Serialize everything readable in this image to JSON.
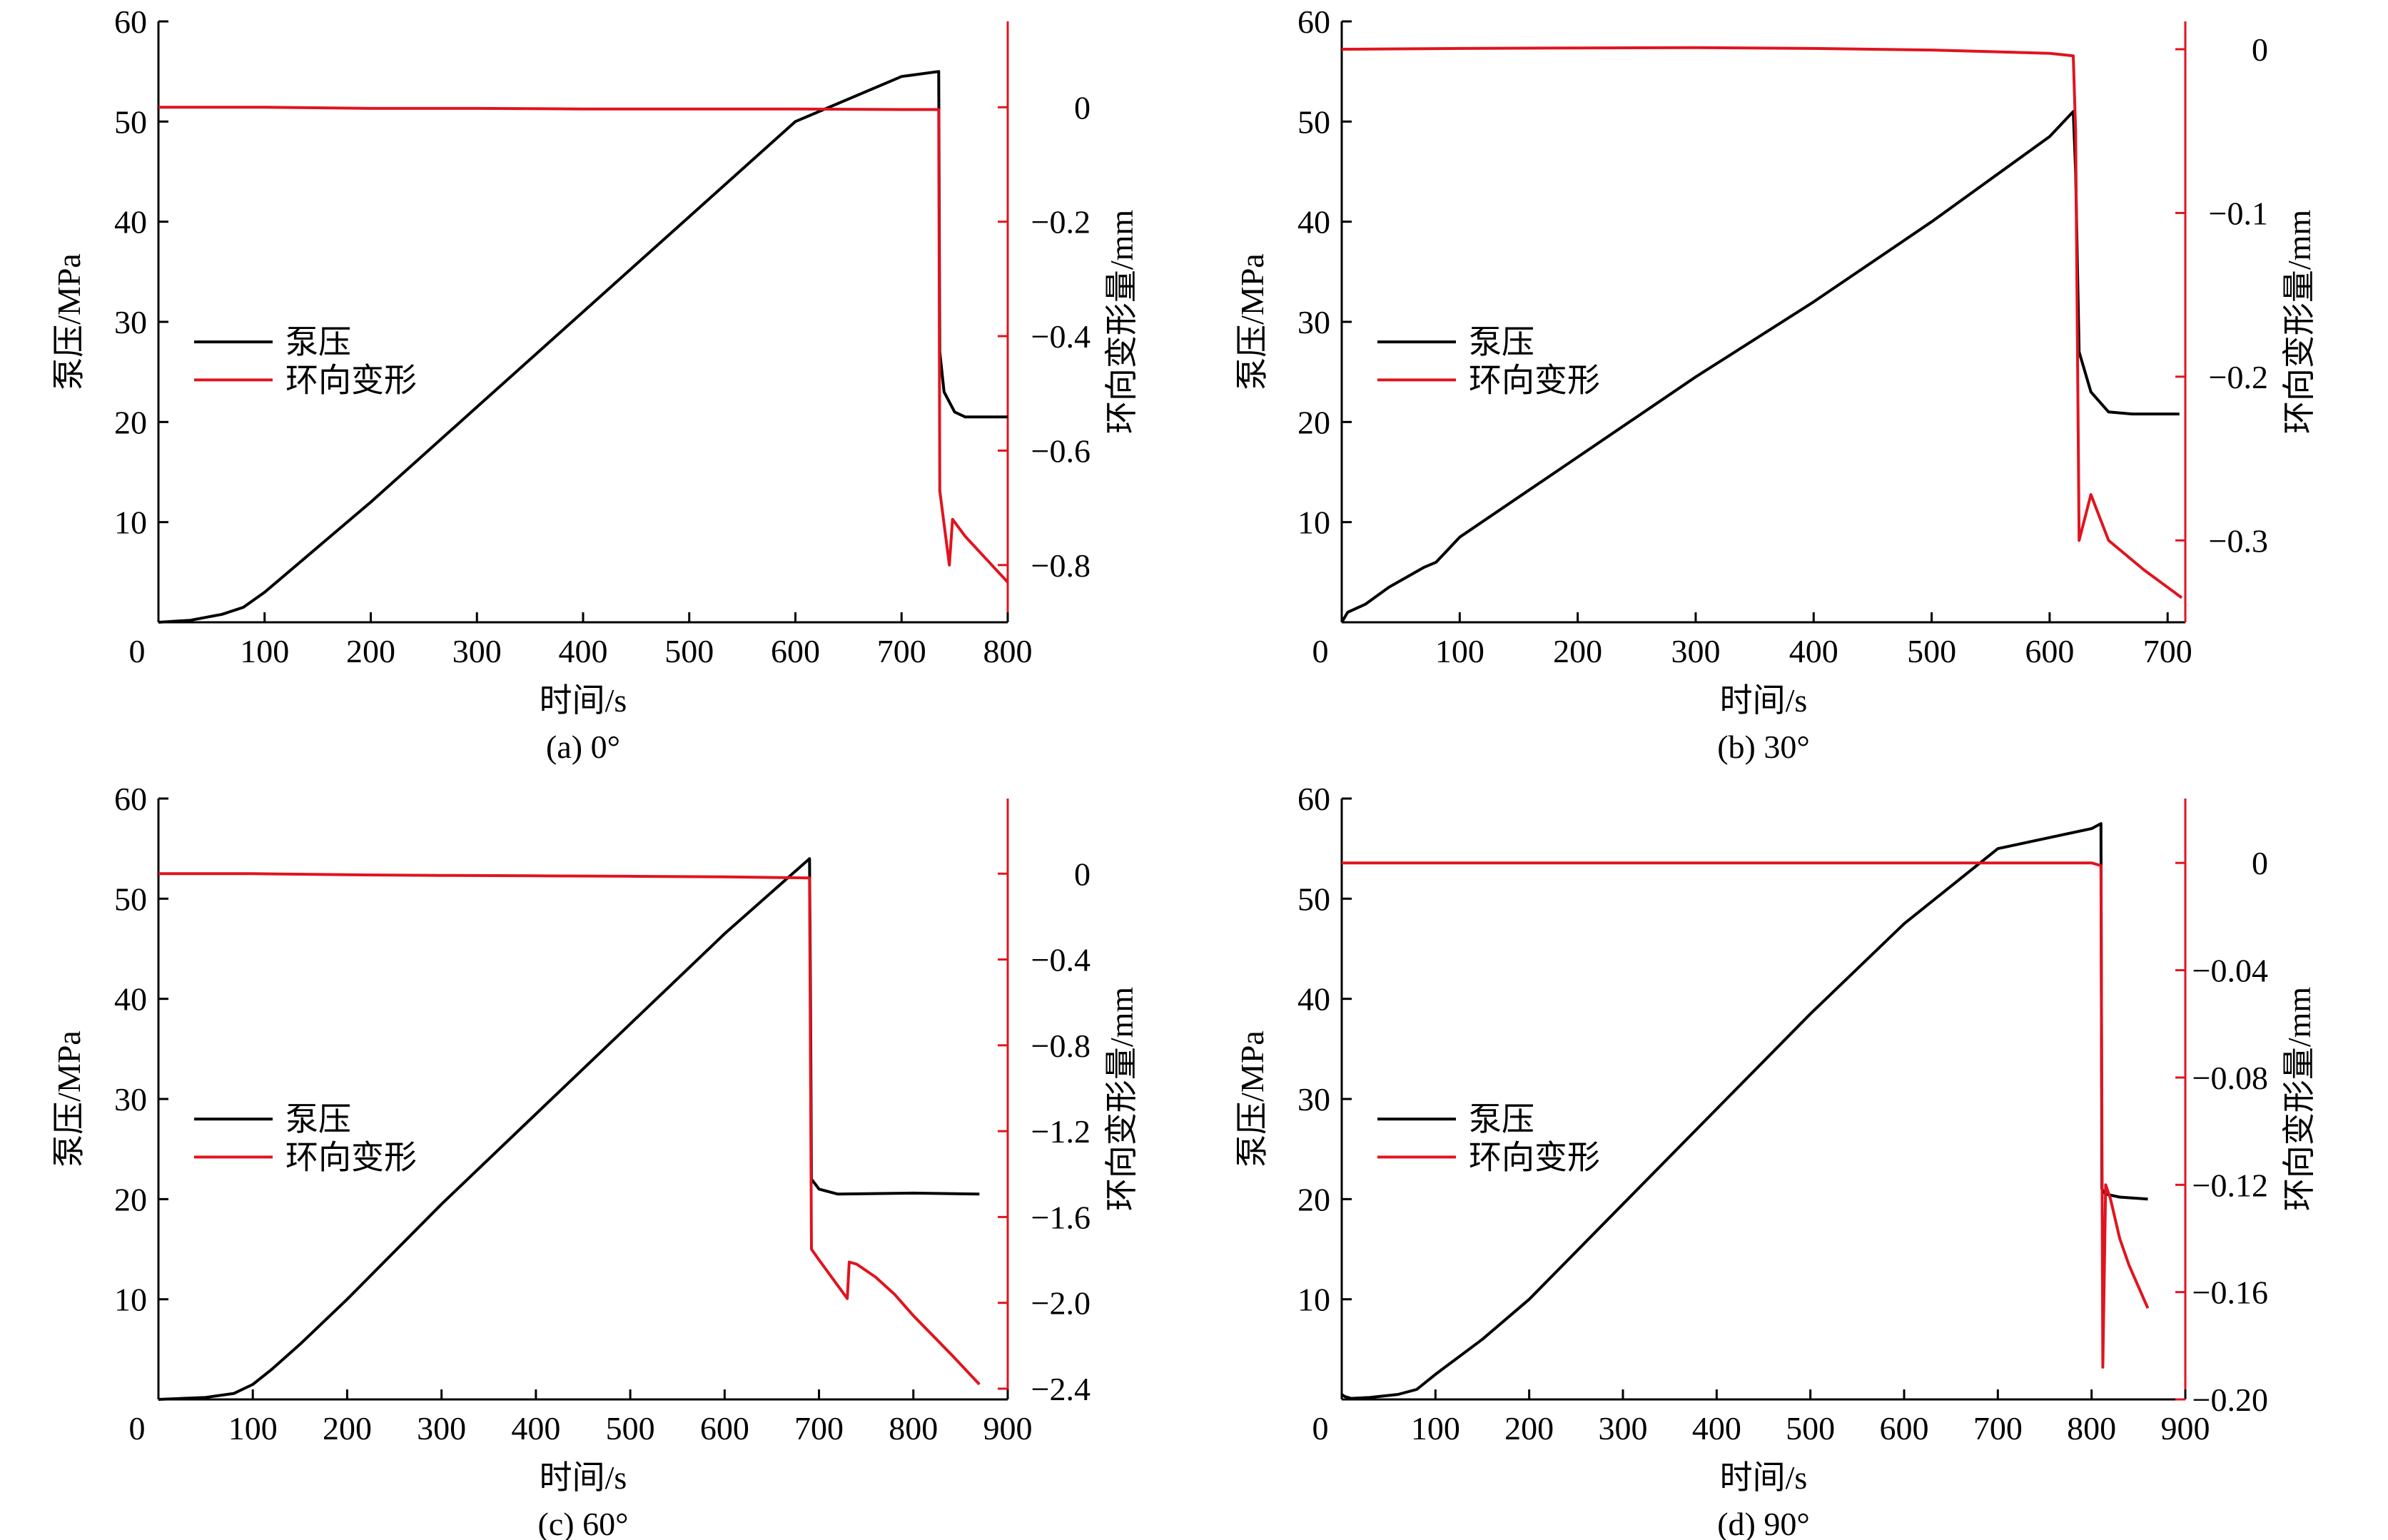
{
  "chart_data": [
    {
      "type": "line",
      "caption": "(a) 0°",
      "xlabel": "时间/s",
      "ylabel": "泵压/MPa",
      "y2label": "环向变形量/mm",
      "xlim": [
        0,
        800
      ],
      "xticks": [
        0,
        100,
        200,
        300,
        400,
        500,
        600,
        700,
        800
      ],
      "ylim": [
        0,
        60
      ],
      "yticks": [
        10,
        20,
        30,
        40,
        50,
        60
      ],
      "y2lim": [
        -0.9,
        0.15
      ],
      "y2ticks": [
        0,
        -0.2,
        -0.4,
        -0.6,
        -0.8
      ],
      "y2ticklabels": [
        "0",
        "−0.2",
        "−0.4",
        "−0.6",
        "−0.8"
      ],
      "legend_position": "left-middle",
      "colors": {
        "pump": "#000000",
        "hoop": "#e0141e"
      },
      "series": [
        {
          "name": "泵压",
          "axis": "left",
          "x": [
            0,
            30,
            60,
            80,
            100,
            150,
            200,
            300,
            400,
            500,
            600,
            700,
            735,
            736,
            740,
            750,
            760,
            800
          ],
          "y": [
            0,
            0.2,
            0.8,
            1.5,
            3,
            7.5,
            12,
            21.5,
            31,
            40.5,
            50,
            54.5,
            55,
            27,
            23,
            21,
            20.5,
            20.5
          ]
        },
        {
          "name": "环向变形",
          "axis": "right",
          "x": [
            0,
            100,
            200,
            300,
            400,
            500,
            600,
            700,
            735,
            736,
            745,
            748,
            760,
            780,
            800
          ],
          "y": [
            0,
            0,
            -0.002,
            -0.002,
            -0.003,
            -0.003,
            -0.003,
            -0.004,
            -0.004,
            -0.67,
            -0.8,
            -0.72,
            -0.75,
            -0.79,
            -0.83
          ]
        }
      ]
    },
    {
      "type": "line",
      "caption": "(b) 30°",
      "xlabel": "时间/s",
      "ylabel": "泵压/MPa",
      "y2label": "环向变形量/mm",
      "xlim": [
        0,
        715
      ],
      "xticks": [
        0,
        100,
        200,
        300,
        400,
        500,
        600,
        700
      ],
      "ylim": [
        0,
        60
      ],
      "yticks": [
        10,
        20,
        30,
        40,
        50,
        60
      ],
      "y2lim": [
        -0.35,
        0.017
      ],
      "y2ticks": [
        0,
        -0.1,
        -0.2,
        -0.3
      ],
      "y2ticklabels": [
        "0",
        "−0.1",
        "−0.2",
        "−0.3"
      ],
      "legend_position": "left-middle",
      "colors": {
        "pump": "#000000",
        "hoop": "#e0141e"
      },
      "series": [
        {
          "name": "泵压",
          "axis": "left",
          "x": [
            0,
            5,
            20,
            40,
            70,
            80,
            100,
            200,
            300,
            400,
            500,
            600,
            620,
            622,
            625,
            635,
            650,
            670,
            710
          ],
          "y": [
            0,
            1,
            1.8,
            3.5,
            5.5,
            6,
            8.5,
            16.5,
            24.5,
            32,
            40,
            48.5,
            51,
            45,
            27,
            23,
            21,
            20.8,
            20.8
          ]
        },
        {
          "name": "环向变形",
          "axis": "right",
          "x": [
            0,
            100,
            200,
            300,
            400,
            500,
            600,
            620,
            622,
            625,
            635,
            650,
            680,
            712
          ],
          "y": [
            0,
            0.0005,
            0.0008,
            0.001,
            0.0005,
            -0.0005,
            -0.0025,
            -0.004,
            -0.05,
            -0.3,
            -0.272,
            -0.3,
            -0.318,
            -0.335
          ]
        }
      ]
    },
    {
      "type": "line",
      "caption": "(c) 60°",
      "xlabel": "时间/s",
      "ylabel": "泵压/MPa",
      "y2label": "环向变形量/mm",
      "xlim": [
        0,
        900
      ],
      "xticks": [
        0,
        100,
        200,
        300,
        400,
        500,
        600,
        700,
        800,
        900
      ],
      "ylim": [
        0,
        60
      ],
      "yticks": [
        10,
        20,
        30,
        40,
        50,
        60
      ],
      "y2lim": [
        -2.45,
        0.35
      ],
      "y2ticks": [
        0,
        -0.4,
        -0.8,
        -1.2,
        -1.6,
        -2.0,
        -2.4
      ],
      "y2ticklabels": [
        "0",
        "−0.4",
        "−0.8",
        "−1.2",
        "−1.6",
        "−2.0",
        "−2.4"
      ],
      "legend_position": "left-middle",
      "colors": {
        "pump": "#000000",
        "hoop": "#e0141e"
      },
      "series": [
        {
          "name": "泵压",
          "axis": "left",
          "x": [
            0,
            50,
            80,
            100,
            120,
            150,
            200,
            300,
            400,
            500,
            600,
            690,
            691,
            692,
            700,
            720,
            800,
            870
          ],
          "y": [
            0,
            0.2,
            0.6,
            1.5,
            3,
            5.5,
            10,
            19.5,
            28.5,
            37.5,
            46.5,
            54,
            40,
            22,
            21,
            20.5,
            20.6,
            20.5
          ]
        },
        {
          "name": "环向变形",
          "axis": "right",
          "x": [
            0,
            100,
            200,
            300,
            400,
            500,
            600,
            690,
            692,
            700,
            730,
            732,
            740,
            760,
            780,
            800,
            840,
            870
          ],
          "y": [
            0,
            0,
            -0.005,
            -0.008,
            -0.01,
            -0.012,
            -0.015,
            -0.02,
            -1.75,
            -1.8,
            -1.98,
            -1.81,
            -1.82,
            -1.88,
            -1.96,
            -2.06,
            -2.24,
            -2.38
          ]
        }
      ]
    },
    {
      "type": "line",
      "caption": "(d) 90°",
      "xlabel": "时间/s",
      "ylabel": "泵压/MPa",
      "y2label": "环向变形量/mm",
      "xlim": [
        0,
        900
      ],
      "xticks": [
        0,
        100,
        200,
        300,
        400,
        500,
        600,
        700,
        800,
        900
      ],
      "ylim": [
        0,
        60
      ],
      "yticks": [
        10,
        20,
        30,
        40,
        50,
        60
      ],
      "y2lim": [
        -0.2,
        0.024
      ],
      "y2ticks": [
        0,
        -0.04,
        -0.08,
        -0.12,
        -0.16,
        -0.2
      ],
      "y2ticklabels": [
        "0",
        "−0.04",
        "−0.08",
        "−0.12",
        "−0.16",
        "−0.20"
      ],
      "legend_position": "left-middle",
      "colors": {
        "pump": "#000000",
        "hoop": "#e0141e"
      },
      "series": [
        {
          "name": "泵压",
          "axis": "left",
          "x": [
            0,
            3,
            10,
            30,
            60,
            80,
            100,
            150,
            200,
            300,
            400,
            500,
            600,
            700,
            800,
            810,
            811,
            815,
            830,
            860
          ],
          "y": [
            0.5,
            0.3,
            0.1,
            0.2,
            0.5,
            1,
            2.5,
            6,
            10,
            19.5,
            29,
            38.5,
            47.5,
            55,
            57,
            57.5,
            21,
            20.5,
            20.2,
            20
          ]
        },
        {
          "name": "环向变形",
          "axis": "right",
          "x": [
            0,
            100,
            200,
            300,
            400,
            500,
            600,
            700,
            800,
            810,
            812,
            815,
            820,
            830,
            840,
            860
          ],
          "y": [
            0,
            0,
            0,
            0,
            0,
            0,
            0,
            0,
            0,
            -0.001,
            -0.188,
            -0.12,
            -0.125,
            -0.14,
            -0.15,
            -0.166
          ]
        }
      ]
    }
  ]
}
